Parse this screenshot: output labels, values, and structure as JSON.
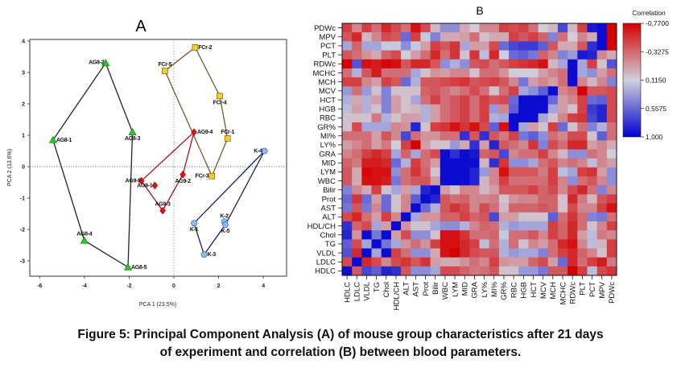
{
  "caption": {
    "line1": "Figure 5: Principal Component Analysis (A) of mouse group characteristics after 21 days",
    "line2": "of experiment and correlation (B) between blood parameters."
  },
  "chart_data": [
    {
      "type": "scatter",
      "panel": "A",
      "title": "A",
      "xlabel": "PCA 1 (23.5%)",
      "ylabel": "PCA 2 (13.6%)",
      "xlim": [
        -6.4,
        5.0
      ],
      "ylim": [
        -3.45,
        4.05
      ],
      "xticks": [
        -6,
        -4,
        -2,
        0,
        2,
        4
      ],
      "yticks": [
        -3,
        -2,
        -1,
        0,
        1,
        2,
        3,
        4
      ],
      "reference_lines": {
        "x": 0,
        "y": 0,
        "style": "dotted"
      },
      "grid": false,
      "series": [
        {
          "name": "AG8",
          "marker": "triangle",
          "color": "#22cc22",
          "hull_color": "#1a2a1a",
          "points": [
            {
              "label": "AG8-1",
              "x": -5.4,
              "y": 0.85
            },
            {
              "label": "AG8-2",
              "x": -3.05,
              "y": 3.3
            },
            {
              "label": "AG8-3",
              "x": -1.85,
              "y": 1.1
            },
            {
              "label": "AG8-4",
              "x": -4.0,
              "y": -2.35
            },
            {
              "label": "AG8-5",
              "x": -2.05,
              "y": -3.2
            }
          ],
          "hull": [
            "AG8-1",
            "AG8-2",
            "AG8-3",
            "AG8-5",
            "AG8-4"
          ]
        },
        {
          "name": "FCr",
          "marker": "square",
          "color": "#f5d020",
          "hull_color": "#7a5a2a",
          "points": [
            {
              "label": "FCr-1",
              "x": 2.4,
              "y": 0.9
            },
            {
              "label": "FCr-2",
              "x": 0.95,
              "y": 3.8
            },
            {
              "label": "FCr-3",
              "x": 1.7,
              "y": -0.3
            },
            {
              "label": "FCr-4",
              "x": 2.05,
              "y": 2.25
            },
            {
              "label": "FCr-5",
              "x": -0.4,
              "y": 3.05
            }
          ],
          "hull": [
            "FCr-5",
            "FCr-2",
            "FCr-4",
            "FCr-1",
            "FCr-3"
          ]
        },
        {
          "name": "AG9",
          "marker": "diamond",
          "color": "#dd1111",
          "hull_color": "#aa1122",
          "points": [
            {
              "label": "AG9-1",
              "x": -0.85,
              "y": -0.6
            },
            {
              "label": "AG9-2",
              "x": 0.4,
              "y": -0.25
            },
            {
              "label": "AG9-3",
              "x": -0.5,
              "y": -1.4
            },
            {
              "label": "AG9-4",
              "x": 0.9,
              "y": 1.1
            },
            {
              "label": "AG9-5",
              "x": -1.45,
              "y": -0.45
            }
          ],
          "hull": [
            "AG9-5",
            "AG9-4",
            "AG9-2",
            "AG9-3"
          ]
        },
        {
          "name": "K",
          "marker": "circle",
          "color": "#88bbee",
          "hull_color": "#1a1f5a",
          "points": [
            {
              "label": "K-1",
              "x": 0.9,
              "y": -1.8
            },
            {
              "label": "K-2",
              "x": 2.25,
              "y": -1.75
            },
            {
              "label": "K-3",
              "x": 1.35,
              "y": -2.8
            },
            {
              "label": "K-4",
              "x": 4.05,
              "y": 0.5
            },
            {
              "label": "K-5",
              "x": 2.3,
              "y": -1.85
            }
          ],
          "hull": [
            "K-1",
            "K-4",
            "K-5",
            "K-3"
          ]
        }
      ]
    },
    {
      "type": "heatmap",
      "panel": "B",
      "title": "B",
      "legend_title": "Correlation",
      "legend_position": "right",
      "colorbar": {
        "min": -0.77,
        "max": 1.0,
        "ticks": [
          "-0,7700",
          "-0,3275",
          "0,1150",
          "0,5575",
          "1,000"
        ],
        "low_color": "#d40000",
        "mid_color": "#d0d0dc",
        "high_color": "#0000d0"
      },
      "rows": [
        "PDWc",
        "MPV",
        "PCT",
        "PLT",
        "RDWc",
        "MCHC",
        "MCH",
        "MCV",
        "HCT",
        "HGB",
        "RBC",
        "GR%",
        "MI%",
        "LY%",
        "GRA",
        "MID",
        "LYM",
        "WBC",
        "Bilir",
        "Prot",
        "AST",
        "ALT",
        "HDL/CH",
        "Chol",
        "TG",
        "VLDL",
        "LDLC",
        "HDLC"
      ],
      "columns": [
        "HDLC",
        "LDLC",
        "VLDL",
        "TG",
        "Chol",
        "HDL/CH",
        "ALT",
        "AST",
        "Prot",
        "Bilir",
        "WBC",
        "LYM",
        "MID",
        "GRA",
        "LY%",
        "MI%",
        "GR%",
        "RBC",
        "HGB",
        "HCT",
        "MCV",
        "MCH",
        "MCHC",
        "RDWc",
        "PLT",
        "PCT",
        "MPV",
        "PDWc"
      ],
      "values": [
        [
          -0.5,
          -0.2,
          -0.5,
          -0.3,
          -0.6,
          -0.45,
          -0.3,
          -0.7,
          -0.45,
          0.0,
          0.4,
          0.4,
          -0.05,
          0.1,
          -0.2,
          -0.2,
          -0.5,
          -0.45,
          -0.5,
          -0.3,
          0.1,
          0.0,
          0.7,
          0.0,
          -0.5,
          0.9,
          0.95,
          -0.77
        ],
        [
          -0.4,
          -0.6,
          0.0,
          -0.2,
          -0.45,
          -0.4,
          0.55,
          -0.5,
          0.15,
          0.45,
          -0.05,
          -0.05,
          -0.1,
          -0.3,
          0.05,
          -0.05,
          -0.05,
          -0.5,
          -0.4,
          -0.5,
          -0.35,
          0.45,
          -0.3,
          0.1,
          -0.2,
          -0.05,
          0.95,
          -0.77
        ],
        [
          0.3,
          -0.35,
          0.3,
          0.3,
          0.15,
          0.15,
          0.4,
          0.15,
          -0.1,
          -0.5,
          -0.4,
          -0.55,
          0.3,
          -0.1,
          -0.1,
          -0.45,
          0.55,
          0.7,
          0.75,
          0.75,
          0.6,
          -0.4,
          -0.05,
          -0.05,
          -0.4,
          0.8,
          0.95,
          -0.77
        ],
        [
          -0.4,
          -0.3,
          -0.15,
          -0.05,
          -0.35,
          -0.45,
          0.1,
          -0.1,
          -0.3,
          -0.6,
          -0.3,
          -0.55,
          0.05,
          -0.55,
          0.2,
          -0.6,
          0.1,
          0.55,
          0.6,
          0.5,
          -0.35,
          -0.2,
          0.45,
          0.35,
          0.9,
          0.85,
          -0.2,
          -0.05
        ],
        [
          -0.77,
          0.65,
          -0.7,
          -0.65,
          -0.75,
          -0.7,
          -0.4,
          -0.6,
          -0.6,
          -0.4,
          0.4,
          0.25,
          0.4,
          -0.4,
          -0.45,
          -0.3,
          -0.4,
          -0.5,
          -0.55,
          -0.6,
          -0.7,
          0.0,
          0.3,
          0.95,
          0.3,
          -0.5,
          0.05,
          0.65
        ],
        [
          -0.3,
          0.25,
          -0.4,
          -0.65,
          -0.3,
          -0.3,
          -0.3,
          0.3,
          0.05,
          -0.15,
          -0.1,
          -0.2,
          -0.2,
          0.05,
          -0.3,
          -0.3,
          -0.15,
          0.1,
          0.1,
          0.1,
          -0.1,
          -0.2,
          -0.3,
          0.95,
          0.3,
          0.4,
          -0.1,
          -0.3
        ],
        [
          -0.5,
          -0.5,
          -0.2,
          -0.1,
          -0.5,
          -0.4,
          0.55,
          0.25,
          -0.4,
          -0.4,
          -0.45,
          -0.5,
          -0.55,
          -0.4,
          -0.45,
          -0.5,
          -0.4,
          -0.2,
          0.5,
          -0.1,
          -0.2,
          -0.1,
          -0.3,
          0.95,
          -0.2,
          0.0,
          -0.2,
          0.45
        ],
        [
          0.35,
          -0.3,
          0.35,
          0.05,
          0.45,
          0.05,
          0.05,
          0.05,
          -0.35,
          -0.4,
          -0.3,
          -0.2,
          -0.3,
          -0.45,
          -0.3,
          0.05,
          -0.3,
          -0.5,
          0.3,
          0.4,
          0.6,
          0.95,
          -0.2,
          -0.3,
          -0.77,
          -0.4,
          -0.4,
          -0.45
        ],
        [
          0.25,
          -0.05,
          0.25,
          -0.1,
          0.45,
          -0.1,
          0.05,
          0.3,
          -0.3,
          -0.5,
          -0.3,
          -0.4,
          -0.5,
          -0.3,
          -0.5,
          -0.4,
          -0.45,
          0.55,
          0.95,
          0.95,
          0.95,
          0.55,
          -0.1,
          -0.2,
          -0.5,
          0.55,
          0.6,
          -0.45
        ],
        [
          0.2,
          -0.1,
          0.25,
          0.05,
          0.45,
          -0.1,
          0.05,
          0.0,
          0.25,
          -0.1,
          -0.3,
          -0.4,
          -0.5,
          -0.3,
          -0.5,
          0.35,
          -0.2,
          0.6,
          0.95,
          0.95,
          0.95,
          0.3,
          -0.1,
          0.05,
          -0.5,
          0.75,
          0.85,
          -0.45
        ],
        [
          0.05,
          0.05,
          0.05,
          -0.25,
          0.25,
          0.05,
          -0.1,
          -0.1,
          0.25,
          -0.1,
          -0.3,
          -0.4,
          -0.5,
          -0.3,
          -0.5,
          0.25,
          0.3,
          0.95,
          0.95,
          0.95,
          0.3,
          0.05,
          -0.2,
          -0.5,
          -0.55,
          0.7,
          0.85,
          -0.45
        ],
        [
          0.05,
          -0.45,
          0.3,
          0.3,
          0.3,
          -0.2,
          -0.15,
          0.85,
          0.05,
          -0.5,
          -0.55,
          -0.7,
          -0.55,
          -0.7,
          -0.45,
          0.6,
          -0.7,
          0.95,
          0.3,
          -0.1,
          0.05,
          -0.5,
          0.55,
          0.05,
          -0.3,
          0.45,
          0.25,
          -0.3
        ],
        [
          -0.3,
          -0.3,
          -0.3,
          -0.1,
          -0.4,
          -0.2,
          0.7,
          -0.3,
          -0.15,
          -0.15,
          -0.3,
          -0.3,
          0.8,
          -0.4,
          0.8,
          -0.4,
          -0.25,
          -0.5,
          0.5,
          0.6,
          0.4,
          -0.3,
          -0.2,
          -0.45,
          -0.45,
          0.05,
          0.6,
          -0.3
        ],
        [
          -0.1,
          -0.2,
          -0.3,
          -0.1,
          -0.25,
          0.1,
          -0.5,
          -0.77,
          -0.1,
          0.05,
          0.05,
          0.35,
          -0.05,
          0.8,
          -0.1,
          0.85,
          -0.4,
          -0.3,
          -0.2,
          -0.55,
          0.45,
          -0.45,
          -0.3,
          -0.6,
          -0.6,
          -0.1,
          -0.2,
          -0.05
        ],
        [
          -0.2,
          -0.3,
          -0.5,
          -0.6,
          -0.5,
          0.3,
          -0.35,
          0.3,
          -0.3,
          -0.45,
          0.95,
          0.8,
          0.95,
          0.9,
          -0.35,
          -0.4,
          0.7,
          -0.2,
          -0.3,
          -0.3,
          -0.5,
          -0.2,
          0.0,
          0.4,
          0.4,
          -0.3,
          -0.2,
          0.1
        ],
        [
          -0.35,
          -0.25,
          -0.65,
          -0.65,
          -0.6,
          0.55,
          0.25,
          -0.5,
          -0.3,
          -0.1,
          0.95,
          0.95,
          0.95,
          0.95,
          0.0,
          0.8,
          -0.55,
          0.4,
          0.4,
          0.3,
          -0.3,
          -0.4,
          -0.2,
          -0.3,
          -0.2,
          0.2,
          -0.2,
          -0.1
        ],
        [
          -0.4,
          -0.05,
          -0.75,
          -0.7,
          -0.7,
          0.4,
          -0.3,
          -0.55,
          -0.35,
          0.05,
          0.95,
          0.95,
          0.95,
          0.85,
          0.35,
          -0.2,
          -0.7,
          -0.4,
          -0.4,
          -0.4,
          -0.25,
          -0.5,
          0.2,
          0.3,
          -0.5,
          -0.55,
          -0.1,
          0.4
        ],
        [
          -0.4,
          -0.05,
          -0.7,
          -0.7,
          -0.65,
          0.5,
          -0.3,
          -0.4,
          -0.4,
          -0.1,
          0.95,
          0.95,
          0.95,
          0.85,
          0.0,
          -0.2,
          -0.5,
          -0.3,
          -0.3,
          -0.3,
          -0.3,
          -0.5,
          -0.2,
          0.4,
          -0.3,
          -0.4,
          -0.2,
          0.4
        ],
        [
          0.45,
          -0.2,
          -0.05,
          -0.5,
          0.05,
          0.3,
          -0.1,
          0.3,
          0.85,
          0.95,
          -0.1,
          0.05,
          -0.2,
          -0.2,
          0.0,
          -0.1,
          -0.4,
          -0.4,
          -0.4,
          -0.5,
          -0.35,
          -0.45,
          -0.2,
          -0.45,
          -0.6,
          -0.3,
          0.45,
          -0.2
        ],
        [
          0.55,
          -0.55,
          0.55,
          -0.1,
          0.55,
          0.05,
          -0.2,
          0.6,
          0.95,
          0.85,
          -0.4,
          -0.3,
          -0.35,
          -0.2,
          -0.2,
          -0.25,
          0.05,
          -0.15,
          -0.2,
          -0.2,
          -0.35,
          -0.35,
          0.05,
          -0.6,
          -0.25,
          0.0,
          -0.4,
          -0.5
        ],
        [
          0.5,
          -0.4,
          0.5,
          -0.2,
          0.55,
          0.05,
          -0.2,
          0.95,
          0.55,
          0.25,
          -0.4,
          -0.55,
          -0.45,
          -0.2,
          -0.45,
          -0.3,
          0.0,
          -0.35,
          -0.35,
          -0.35,
          -0.4,
          -0.35,
          0.05,
          -0.45,
          -0.2,
          -0.2,
          -0.5,
          -0.7
        ],
        [
          -0.45,
          -0.6,
          -0.3,
          -0.1,
          -0.5,
          -0.2,
          0.95,
          0.3,
          -0.15,
          -0.15,
          -0.35,
          -0.35,
          -0.5,
          -0.35,
          -0.4,
          0.7,
          -0.1,
          -0.1,
          0.05,
          0.05,
          0.05,
          0.6,
          -0.3,
          -0.55,
          -0.3,
          0.45,
          0.5,
          -0.3
        ],
        [
          0.8,
          -0.35,
          -0.45,
          0.3,
          -0.1,
          0.95,
          -0.15,
          0.05,
          0.05,
          0.3,
          0.4,
          0.4,
          0.25,
          -0.2,
          -0.35,
          -0.3,
          0.25,
          0.35,
          0.3,
          0.3,
          0.3,
          -0.5,
          -0.35,
          -0.6,
          -0.3,
          0.05,
          -0.2,
          -0.5
        ],
        [
          0.85,
          -0.15,
          0.95,
          0.5,
          0.95,
          -0.1,
          -0.45,
          0.4,
          0.4,
          0.05,
          -0.7,
          -0.7,
          -0.55,
          -0.3,
          -0.3,
          -0.35,
          0.15,
          -0.3,
          -0.3,
          -0.4,
          -0.2,
          -0.5,
          -0.35,
          -0.6,
          -0.1,
          0.2,
          -0.25,
          -0.2
        ],
        [
          0.6,
          -0.45,
          0.3,
          0.95,
          0.5,
          0.3,
          -0.15,
          -0.3,
          -0.15,
          -0.5,
          -0.7,
          -0.7,
          -0.6,
          -0.5,
          0.2,
          -0.3,
          0.25,
          -0.3,
          0.05,
          -0.2,
          -0.1,
          -0.3,
          -0.6,
          -0.7,
          -0.2,
          0.2,
          0.0,
          -0.5
        ],
        [
          0.65,
          -0.6,
          0.95,
          0.3,
          0.95,
          -0.5,
          -0.3,
          0.4,
          0.4,
          -0.05,
          -0.7,
          -0.77,
          -0.6,
          -0.45,
          -0.4,
          -0.4,
          0.25,
          0.35,
          0.3,
          0.3,
          0.45,
          -0.3,
          -0.5,
          -0.6,
          -0.35,
          -0.2,
          0.05,
          -0.5
        ],
        [
          -0.45,
          0.95,
          -0.6,
          -0.45,
          -0.2,
          -0.45,
          -0.55,
          -0.4,
          -0.55,
          -0.1,
          -0.05,
          -0.05,
          -0.15,
          -0.3,
          -0.2,
          -0.5,
          -0.15,
          -0.1,
          -0.1,
          -0.35,
          -0.45,
          -0.1,
          0.55,
          -0.6,
          -0.3,
          -0.5,
          -0.65,
          -0.25
        ],
        [
          0.95,
          -0.4,
          0.7,
          0.6,
          0.85,
          0.8,
          -0.4,
          0.4,
          0.4,
          0.3,
          -0.45,
          -0.45,
          -0.35,
          -0.25,
          -0.3,
          -0.4,
          0.05,
          0.05,
          0.35,
          0.35,
          0.5,
          -0.4,
          -0.4,
          -0.77,
          -0.5,
          0.2,
          -0.45,
          -0.55
        ]
      ]
    }
  ]
}
